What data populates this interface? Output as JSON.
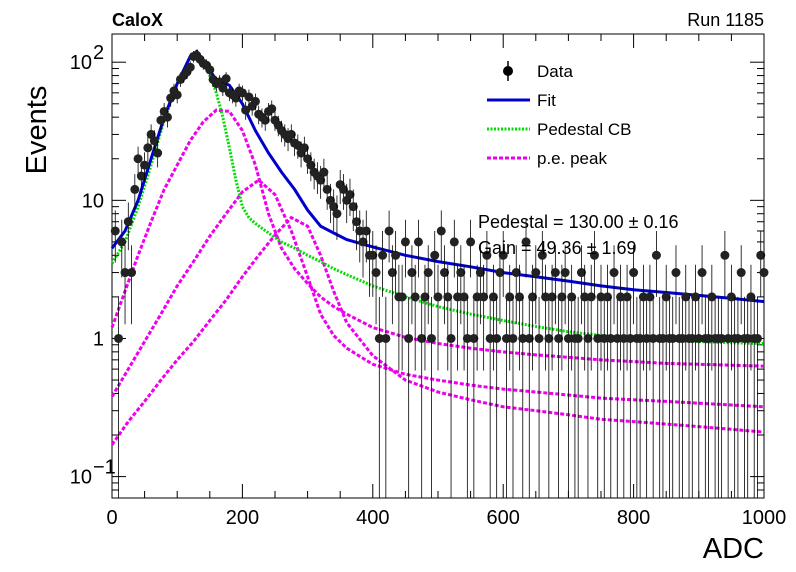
{
  "header": {
    "experiment": "CaloX",
    "run": "Run 1185"
  },
  "chart_data": {
    "type": "scatter",
    "xlabel": "ADC",
    "ylabel": "Events",
    "xlim": [
      0,
      1000
    ],
    "ylim": [
      0.07,
      160
    ],
    "yscale": "log",
    "x_ticks": [
      "0",
      "200",
      "400",
      "600",
      "800",
      "1000"
    ],
    "y_ticks": [
      {
        "base": "10",
        "exp": "2"
      },
      {
        "base": "10",
        "exp": ""
      },
      {
        "base": "1",
        "exp": ""
      },
      {
        "base": "10",
        "exp": "−1"
      }
    ],
    "legend": {
      "position": "top-right",
      "entries": [
        "Data",
        "Fit",
        "Pedestal CB",
        "p.e. peak"
      ]
    },
    "colors": {
      "data": "#000000",
      "fit": "#0000cc",
      "pedestal": "#00dd00",
      "pe": "#ee00ee"
    },
    "fit_parameters": [
      "Pedestal = 130.00 ± 0.16",
      "Gain = 49.36 ± 1.69"
    ],
    "data": {
      "x": [
        5,
        10,
        15,
        20,
        25,
        30,
        35,
        40,
        45,
        50,
        55,
        60,
        65,
        70,
        75,
        80,
        85,
        90,
        95,
        100,
        105,
        110,
        115,
        120,
        125,
        130,
        135,
        140,
        145,
        150,
        155,
        160,
        165,
        170,
        175,
        180,
        185,
        190,
        195,
        200,
        205,
        210,
        215,
        220,
        225,
        230,
        235,
        240,
        245,
        250,
        255,
        260,
        265,
        270,
        275,
        280,
        285,
        290,
        295,
        300,
        305,
        310,
        315,
        320,
        325,
        330,
        335,
        340,
        345,
        350,
        355,
        360,
        365,
        370,
        375,
        380,
        385,
        390,
        395,
        400,
        405,
        410,
        415,
        420,
        425,
        430,
        435,
        440,
        445,
        450,
        455,
        460,
        465,
        470,
        475,
        480,
        485,
        490,
        495,
        500,
        505,
        510,
        515,
        520,
        525,
        530,
        535,
        540,
        545,
        550,
        555,
        560,
        565,
        570,
        575,
        580,
        585,
        590,
        595,
        600,
        605,
        610,
        615,
        620,
        625,
        630,
        635,
        640,
        645,
        650,
        655,
        660,
        665,
        670,
        675,
        680,
        685,
        690,
        695,
        700,
        705,
        710,
        715,
        720,
        725,
        730,
        735,
        740,
        745,
        750,
        755,
        760,
        765,
        770,
        775,
        780,
        785,
        790,
        795,
        800,
        805,
        810,
        815,
        820,
        825,
        830,
        835,
        840,
        845,
        850,
        855,
        860,
        865,
        870,
        875,
        880,
        885,
        890,
        895,
        900,
        905,
        910,
        915,
        920,
        925,
        930,
        935,
        940,
        945,
        950,
        955,
        960,
        965,
        970,
        975,
        980,
        985,
        990,
        995,
        1000
      ],
      "y": [
        6,
        1,
        5,
        3,
        7,
        3,
        12,
        20,
        15,
        18,
        24,
        30,
        27,
        22,
        38,
        44,
        40,
        55,
        62,
        58,
        75,
        80,
        85,
        92,
        110,
        112,
        105,
        98,
        95,
        88,
        75,
        70,
        72,
        65,
        76,
        60,
        58,
        55,
        62,
        60,
        45,
        56,
        48,
        52,
        42,
        40,
        38,
        44,
        46,
        38,
        35,
        32,
        30,
        28,
        30,
        26,
        25,
        22,
        24,
        20,
        18,
        16,
        15,
        14,
        16,
        12,
        10,
        9,
        8,
        13,
        12,
        10,
        11,
        9,
        7,
        6,
        5,
        6,
        4,
        4,
        3,
        1,
        4,
        1,
        6,
        3,
        4,
        2,
        2,
        5,
        1,
        3,
        2,
        5,
        1,
        2,
        3,
        1,
        4,
        2,
        6,
        3,
        2,
        1,
        5,
        2,
        3,
        2,
        1,
        5,
        1,
        2,
        3,
        2,
        4,
        1,
        2,
        1,
        3,
        4,
        1,
        2,
        1,
        3,
        2,
        1,
        5,
        1,
        2,
        3,
        1,
        4,
        2,
        1,
        2,
        3,
        1,
        2,
        3,
        1,
        2,
        1,
        1,
        3,
        2,
        1,
        2,
        4,
        1,
        2,
        1,
        2,
        1,
        3,
        1,
        2,
        1,
        2,
        1,
        3,
        1,
        1,
        2,
        1,
        2,
        1,
        4,
        1,
        1,
        2,
        1,
        1,
        3,
        1,
        1,
        2,
        1,
        1,
        2,
        1,
        3,
        1,
        1,
        2,
        1,
        1,
        1,
        4,
        1,
        2,
        1,
        1,
        3,
        1,
        1,
        2,
        1,
        1,
        4,
        3
      ]
    },
    "fit": {
      "x": [
        0,
        20,
        40,
        60,
        80,
        100,
        120,
        130,
        140,
        160,
        180,
        200,
        220,
        240,
        260,
        280,
        300,
        320,
        340,
        360,
        400,
        450,
        500,
        550,
        600,
        650,
        700,
        750,
        800,
        850,
        900,
        950,
        1000
      ],
      "y": [
        4.5,
        6,
        10,
        20,
        40,
        70,
        110,
        120,
        100,
        75,
        68,
        50,
        32,
        22,
        16,
        12,
        8.5,
        6.5,
        5.8,
        5.2,
        4.6,
        4.0,
        3.6,
        3.3,
        3.0,
        2.8,
        2.6,
        2.4,
        2.25,
        2.15,
        2.05,
        1.95,
        1.85
      ]
    },
    "pedestal": {
      "x": [
        0,
        20,
        40,
        60,
        80,
        100,
        120,
        130,
        140,
        150,
        160,
        170,
        180,
        190,
        200,
        210,
        220,
        240,
        260,
        280,
        300,
        320,
        340,
        360,
        400,
        450,
        500,
        550,
        600,
        650,
        700,
        750,
        800,
        850,
        900,
        950,
        1000
      ],
      "y": [
        3.5,
        5,
        9,
        18,
        38,
        70,
        110,
        118,
        100,
        80,
        60,
        40,
        24,
        14,
        9,
        7.5,
        6.8,
        5.8,
        5.0,
        4.5,
        4.0,
        3.6,
        3.2,
        2.9,
        2.4,
        2.0,
        1.7,
        1.5,
        1.35,
        1.22,
        1.12,
        1.05,
        1.0,
        0.97,
        0.95,
        0.93,
        0.92
      ]
    },
    "pe_peaks": [
      {
        "x": [
          0,
          20,
          40,
          60,
          80,
          100,
          120,
          140,
          160,
          180,
          200,
          220,
          240,
          260,
          280,
          300,
          320,
          340,
          360,
          400,
          450,
          500,
          550,
          600,
          650,
          700,
          750,
          800,
          850,
          900,
          950,
          1000
        ],
        "y": [
          1.2,
          2.2,
          4,
          7,
          12,
          18,
          27,
          37,
          45,
          44,
          32,
          18,
          8,
          4.5,
          3.2,
          2.5,
          2.0,
          1.7,
          1.5,
          1.2,
          1.02,
          0.92,
          0.85,
          0.8,
          0.76,
          0.73,
          0.7,
          0.68,
          0.66,
          0.65,
          0.64,
          0.63
        ]
      },
      {
        "x": [
          0,
          25,
          50,
          75,
          100,
          125,
          150,
          175,
          200,
          225,
          250,
          275,
          300,
          320,
          340,
          360,
          400,
          450,
          500,
          550,
          600,
          650,
          700,
          750,
          800,
          850,
          900,
          950,
          1000
        ],
        "y": [
          0.38,
          0.6,
          0.95,
          1.5,
          2.4,
          3.6,
          5.5,
          8,
          11.5,
          14,
          11,
          6,
          2.8,
          1.5,
          1.05,
          0.85,
          0.65,
          0.55,
          0.5,
          0.46,
          0.43,
          0.41,
          0.39,
          0.37,
          0.36,
          0.35,
          0.34,
          0.33,
          0.32
        ]
      },
      {
        "x": [
          0,
          25,
          50,
          75,
          100,
          125,
          150,
          175,
          200,
          225,
          250,
          275,
          300,
          320,
          340,
          360,
          400,
          450,
          500,
          550,
          600,
          650,
          700,
          750,
          800,
          850,
          900,
          950,
          1000
        ],
        "y": [
          0.17,
          0.25,
          0.35,
          0.5,
          0.7,
          0.95,
          1.35,
          1.9,
          2.8,
          4.0,
          5.6,
          7.5,
          6.5,
          4,
          2.2,
          1.3,
          0.75,
          0.5,
          0.41,
          0.36,
          0.32,
          0.3,
          0.28,
          0.26,
          0.25,
          0.24,
          0.23,
          0.22,
          0.21
        ]
      }
    ]
  }
}
